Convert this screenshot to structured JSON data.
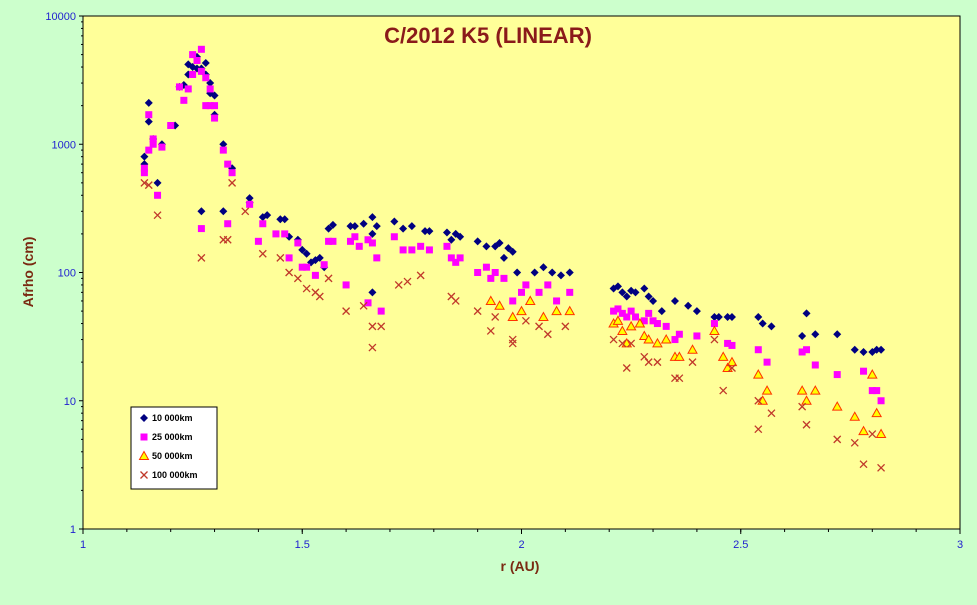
{
  "chart_data": {
    "type": "scatter",
    "title": "C/2012 K5 (LINEAR)",
    "xlabel": "r (AU)",
    "ylabel": "Afrho (cm)",
    "xlim": [
      1,
      3
    ],
    "ylim": [
      1,
      10000
    ],
    "yscale": "log",
    "x_ticks": [
      "1",
      "1.5",
      "2",
      "2.5",
      "3"
    ],
    "y_ticks": [
      "1",
      "10",
      "100",
      "1000",
      "10000"
    ],
    "grid": false,
    "legend_position": "bottom-left",
    "colors": {
      "background": "#ccffcc",
      "plot_area": "#ffff99",
      "s10000": "#000080",
      "s25000": "#ff00ff",
      "s50000_fill": "#ffff00",
      "s50000_edge": "#ff3300",
      "s100000": "#c0392b"
    },
    "series": [
      {
        "name": "10 000km",
        "marker": "diamond",
        "points": [
          [
            1.14,
            800
          ],
          [
            1.14,
            700
          ],
          [
            1.15,
            1500
          ],
          [
            1.15,
            2100
          ],
          [
            1.16,
            1100
          ],
          [
            1.17,
            500
          ],
          [
            1.18,
            1000
          ],
          [
            1.21,
            1400
          ],
          [
            1.22,
            2800
          ],
          [
            1.23,
            2900
          ],
          [
            1.24,
            3500
          ],
          [
            1.24,
            4200
          ],
          [
            1.25,
            4000
          ],
          [
            1.26,
            3900
          ],
          [
            1.26,
            4800
          ],
          [
            1.27,
            3900
          ],
          [
            1.28,
            4300
          ],
          [
            1.28,
            3500
          ],
          [
            1.29,
            3000
          ],
          [
            1.29,
            2500
          ],
          [
            1.3,
            2400
          ],
          [
            1.3,
            1700
          ],
          [
            1.32,
            1000
          ],
          [
            1.32,
            300
          ],
          [
            1.34,
            650
          ],
          [
            1.38,
            380
          ],
          [
            1.38,
            350
          ],
          [
            1.27,
            300
          ],
          [
            1.41,
            270
          ],
          [
            1.42,
            280
          ],
          [
            1.45,
            260
          ],
          [
            1.46,
            260
          ],
          [
            1.47,
            190
          ],
          [
            1.49,
            180
          ],
          [
            1.5,
            150
          ],
          [
            1.51,
            140
          ],
          [
            1.52,
            120
          ],
          [
            1.53,
            125
          ],
          [
            1.54,
            130
          ],
          [
            1.55,
            110
          ],
          [
            1.56,
            220
          ],
          [
            1.57,
            235
          ],
          [
            1.61,
            230
          ],
          [
            1.62,
            230
          ],
          [
            1.64,
            240
          ],
          [
            1.66,
            270
          ],
          [
            1.66,
            200
          ],
          [
            1.67,
            230
          ],
          [
            1.66,
            70
          ],
          [
            1.71,
            250
          ],
          [
            1.73,
            220
          ],
          [
            1.75,
            230
          ],
          [
            1.78,
            210
          ],
          [
            1.79,
            210
          ],
          [
            1.83,
            205
          ],
          [
            1.85,
            200
          ],
          [
            1.84,
            180
          ],
          [
            1.86,
            190
          ],
          [
            1.9,
            175
          ],
          [
            1.92,
            160
          ],
          [
            1.94,
            160
          ],
          [
            1.95,
            170
          ],
          [
            1.97,
            155
          ],
          [
            1.98,
            145
          ],
          [
            1.96,
            130
          ],
          [
            1.99,
            100
          ],
          [
            2.03,
            100
          ],
          [
            2.05,
            110
          ],
          [
            2.07,
            100
          ],
          [
            2.09,
            95
          ],
          [
            2.11,
            100
          ],
          [
            2.21,
            75
          ],
          [
            2.22,
            78
          ],
          [
            2.23,
            70
          ],
          [
            2.24,
            65
          ],
          [
            2.25,
            72
          ],
          [
            2.26,
            70
          ],
          [
            2.28,
            75
          ],
          [
            2.29,
            65
          ],
          [
            2.3,
            60
          ],
          [
            2.32,
            50
          ],
          [
            2.35,
            60
          ],
          [
            2.38,
            55
          ],
          [
            2.4,
            50
          ],
          [
            2.44,
            45
          ],
          [
            2.45,
            45
          ],
          [
            2.47,
            45
          ],
          [
            2.48,
            45
          ],
          [
            2.54,
            45
          ],
          [
            2.55,
            40
          ],
          [
            2.57,
            38
          ],
          [
            2.64,
            32
          ],
          [
            2.65,
            48
          ],
          [
            2.67,
            33
          ],
          [
            2.72,
            33
          ],
          [
            2.76,
            25
          ],
          [
            2.78,
            24
          ],
          [
            2.8,
            24
          ],
          [
            2.81,
            25
          ],
          [
            2.82,
            25
          ]
        ]
      },
      {
        "name": "25 000km",
        "marker": "square",
        "points": [
          [
            1.14,
            600
          ],
          [
            1.14,
            650
          ],
          [
            1.15,
            900
          ],
          [
            1.15,
            1700
          ],
          [
            1.16,
            1000
          ],
          [
            1.16,
            1100
          ],
          [
            1.17,
            400
          ],
          [
            1.18,
            950
          ],
          [
            1.2,
            1400
          ],
          [
            1.22,
            2800
          ],
          [
            1.23,
            2200
          ],
          [
            1.24,
            2700
          ],
          [
            1.25,
            3500
          ],
          [
            1.25,
            5000
          ],
          [
            1.26,
            4500
          ],
          [
            1.27,
            5500
          ],
          [
            1.27,
            3700
          ],
          [
            1.28,
            3300
          ],
          [
            1.28,
            2000
          ],
          [
            1.29,
            2700
          ],
          [
            1.29,
            2000
          ],
          [
            1.3,
            2000
          ],
          [
            1.3,
            1600
          ],
          [
            1.32,
            900
          ],
          [
            1.33,
            700
          ],
          [
            1.33,
            240
          ],
          [
            1.27,
            220
          ],
          [
            1.34,
            600
          ],
          [
            1.38,
            340
          ],
          [
            1.4,
            175
          ],
          [
            1.41,
            240
          ],
          [
            1.44,
            200
          ],
          [
            1.46,
            200
          ],
          [
            1.47,
            130
          ],
          [
            1.49,
            170
          ],
          [
            1.5,
            110
          ],
          [
            1.51,
            110
          ],
          [
            1.53,
            95
          ],
          [
            1.55,
            115
          ],
          [
            1.56,
            175
          ],
          [
            1.57,
            175
          ],
          [
            1.6,
            80
          ],
          [
            1.61,
            175
          ],
          [
            1.62,
            190
          ],
          [
            1.63,
            160
          ],
          [
            1.65,
            180
          ],
          [
            1.66,
            170
          ],
          [
            1.65,
            58
          ],
          [
            1.67,
            130
          ],
          [
            1.68,
            50
          ],
          [
            1.71,
            190
          ],
          [
            1.73,
            150
          ],
          [
            1.75,
            150
          ],
          [
            1.77,
            160
          ],
          [
            1.79,
            150
          ],
          [
            1.83,
            160
          ],
          [
            1.84,
            130
          ],
          [
            1.85,
            120
          ],
          [
            1.86,
            130
          ],
          [
            1.9,
            100
          ],
          [
            1.92,
            110
          ],
          [
            1.93,
            90
          ],
          [
            1.94,
            100
          ],
          [
            1.96,
            90
          ],
          [
            1.98,
            60
          ],
          [
            2.0,
            70
          ],
          [
            2.01,
            80
          ],
          [
            2.04,
            70
          ],
          [
            2.06,
            80
          ],
          [
            2.08,
            60
          ],
          [
            2.11,
            70
          ],
          [
            2.21,
            50
          ],
          [
            2.22,
            52
          ],
          [
            2.23,
            48
          ],
          [
            2.24,
            45
          ],
          [
            2.25,
            50
          ],
          [
            2.26,
            45
          ],
          [
            2.28,
            42
          ],
          [
            2.29,
            48
          ],
          [
            2.3,
            42
          ],
          [
            2.31,
            40
          ],
          [
            2.33,
            38
          ],
          [
            2.35,
            30
          ],
          [
            2.36,
            33
          ],
          [
            2.4,
            32
          ],
          [
            2.44,
            40
          ],
          [
            2.47,
            28
          ],
          [
            2.48,
            27
          ],
          [
            2.54,
            25
          ],
          [
            2.56,
            20
          ],
          [
            2.64,
            24
          ],
          [
            2.65,
            25
          ],
          [
            2.67,
            19
          ],
          [
            2.72,
            16
          ],
          [
            2.78,
            17
          ],
          [
            2.8,
            12
          ],
          [
            2.81,
            12
          ],
          [
            2.82,
            10
          ]
        ]
      },
      {
        "name": "50 000km",
        "marker": "triangle",
        "points": [
          [
            1.93,
            60
          ],
          [
            1.95,
            55
          ],
          [
            1.98,
            45
          ],
          [
            2.0,
            50
          ],
          [
            2.02,
            60
          ],
          [
            2.05,
            45
          ],
          [
            2.08,
            50
          ],
          [
            2.11,
            50
          ],
          [
            2.21,
            40
          ],
          [
            2.22,
            42
          ],
          [
            2.23,
            35
          ],
          [
            2.24,
            28
          ],
          [
            2.25,
            38
          ],
          [
            2.27,
            40
          ],
          [
            2.28,
            32
          ],
          [
            2.29,
            30
          ],
          [
            2.31,
            28
          ],
          [
            2.33,
            30
          ],
          [
            2.35,
            22
          ],
          [
            2.36,
            22
          ],
          [
            2.39,
            25
          ],
          [
            2.44,
            35
          ],
          [
            2.46,
            22
          ],
          [
            2.47,
            18
          ],
          [
            2.48,
            20
          ],
          [
            2.54,
            16
          ],
          [
            2.55,
            10
          ],
          [
            2.56,
            12
          ],
          [
            2.64,
            12
          ],
          [
            2.65,
            10
          ],
          [
            2.67,
            12
          ],
          [
            2.72,
            9
          ],
          [
            2.76,
            7.5
          ],
          [
            2.78,
            5.8
          ],
          [
            2.8,
            16
          ],
          [
            2.81,
            8
          ],
          [
            2.82,
            5.5
          ]
        ]
      },
      {
        "name": "100 000km",
        "marker": "x",
        "points": [
          [
            1.14,
            500
          ],
          [
            1.15,
            480
          ],
          [
            1.17,
            280
          ],
          [
            1.27,
            130
          ],
          [
            1.32,
            180
          ],
          [
            1.33,
            180
          ],
          [
            1.34,
            500
          ],
          [
            1.37,
            300
          ],
          [
            1.41,
            140
          ],
          [
            1.45,
            130
          ],
          [
            1.47,
            100
          ],
          [
            1.49,
            90
          ],
          [
            1.51,
            75
          ],
          [
            1.53,
            70
          ],
          [
            1.54,
            65
          ],
          [
            1.56,
            90
          ],
          [
            1.6,
            50
          ],
          [
            1.64,
            55
          ],
          [
            1.66,
            38
          ],
          [
            1.66,
            26
          ],
          [
            1.68,
            38
          ],
          [
            1.72,
            80
          ],
          [
            1.74,
            85
          ],
          [
            1.77,
            95
          ],
          [
            1.84,
            65
          ],
          [
            1.85,
            60
          ],
          [
            1.9,
            50
          ],
          [
            1.93,
            35
          ],
          [
            1.94,
            45
          ],
          [
            1.98,
            30
          ],
          [
            1.98,
            28
          ],
          [
            2.01,
            42
          ],
          [
            2.04,
            38
          ],
          [
            2.06,
            33
          ],
          [
            2.1,
            38
          ],
          [
            2.21,
            30
          ],
          [
            2.23,
            28
          ],
          [
            2.24,
            18
          ],
          [
            2.25,
            28
          ],
          [
            2.28,
            22
          ],
          [
            2.29,
            20
          ],
          [
            2.31,
            20
          ],
          [
            2.35,
            15
          ],
          [
            2.36,
            15
          ],
          [
            2.39,
            20
          ],
          [
            2.44,
            30
          ],
          [
            2.46,
            12
          ],
          [
            2.48,
            18
          ],
          [
            2.54,
            10
          ],
          [
            2.54,
            6
          ],
          [
            2.57,
            8
          ],
          [
            2.64,
            9
          ],
          [
            2.65,
            6.5
          ],
          [
            2.72,
            5
          ],
          [
            2.76,
            4.7
          ],
          [
            2.78,
            3.2
          ],
          [
            2.8,
            5.5
          ],
          [
            2.82,
            3
          ]
        ]
      }
    ]
  }
}
